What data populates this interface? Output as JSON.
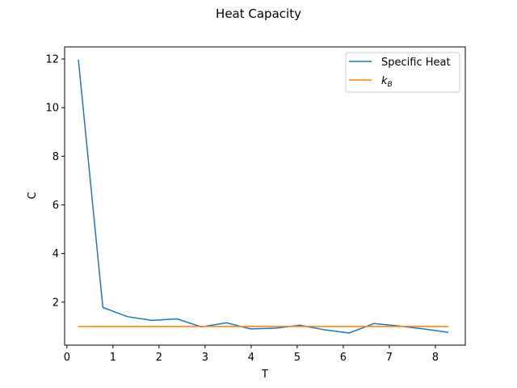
{
  "chart_data": {
    "type": "line",
    "title": "Heat Capacity",
    "xlabel": "T",
    "ylabel": "C",
    "xlim": [
      -0.05,
      8.65
    ],
    "ylim": [
      0.23,
      12.5
    ],
    "xticks": [
      0,
      1,
      2,
      3,
      4,
      5,
      6,
      7,
      8
    ],
    "yticks": [
      2,
      4,
      6,
      8,
      10,
      12
    ],
    "x": [
      0.25,
      0.78,
      1.32,
      1.85,
      2.39,
      2.92,
      3.46,
      3.99,
      4.53,
      5.06,
      5.6,
      6.13,
      6.67,
      7.2,
      7.74,
      8.27
    ],
    "series": [
      {
        "name": "Specific Heat",
        "color": "#1f77b4",
        "values": [
          11.95,
          1.78,
          1.4,
          1.25,
          1.31,
          0.98,
          1.15,
          0.9,
          0.93,
          1.05,
          0.86,
          0.73,
          1.12,
          1.02,
          0.9,
          0.76
        ]
      },
      {
        "name": "k_B",
        "color": "#ff7f0e",
        "values": [
          1.0,
          1.0,
          1.0,
          1.0,
          1.0,
          1.0,
          1.0,
          1.0,
          1.0,
          1.0,
          1.0,
          1.0,
          1.0,
          1.0,
          1.0,
          1.0
        ]
      }
    ],
    "legend": {
      "position": "top-right",
      "entries": [
        {
          "label": "Specific Heat",
          "color": "#1f77b4"
        },
        {
          "label": "k",
          "subscript": "B",
          "color": "#ff7f0e"
        }
      ]
    },
    "grid": false
  }
}
